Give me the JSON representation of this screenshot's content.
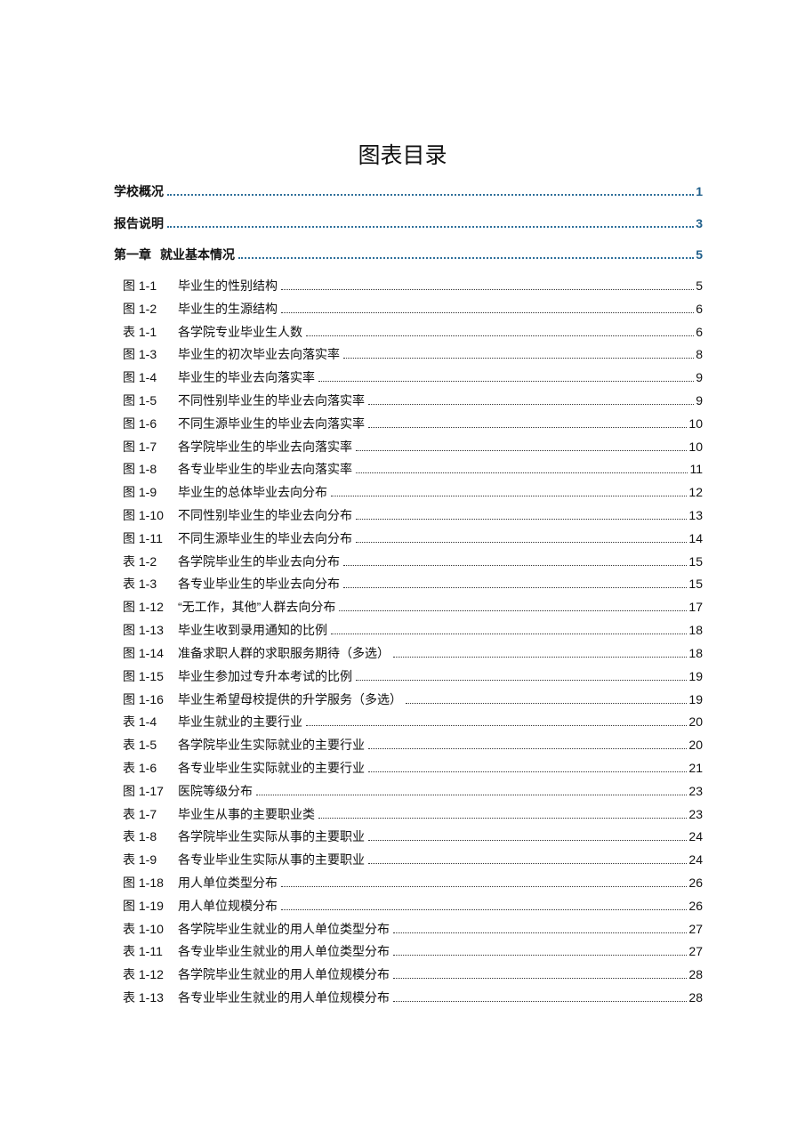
{
  "title": "图表目录",
  "main_entries": [
    {
      "prefix": "",
      "label": "学校概况",
      "page": "1"
    },
    {
      "prefix": "",
      "label": "报告说明",
      "page": "3"
    },
    {
      "prefix": "第一章",
      "label": "就业基本情况",
      "page": "5"
    }
  ],
  "entries": [
    {
      "num": "图 1-1",
      "label": "毕业生的性别结构",
      "page": "5"
    },
    {
      "num": "图 1-2",
      "label": "毕业生的生源结构",
      "page": "6"
    },
    {
      "num": "表 1-1",
      "label": "各学院专业毕业生人数",
      "page": "6"
    },
    {
      "num": "图 1-3",
      "label": "毕业生的初次毕业去向落实率",
      "page": "8"
    },
    {
      "num": "图 1-4",
      "label": "毕业生的毕业去向落实率",
      "page": "9"
    },
    {
      "num": "图 1-5",
      "label": "不同性别毕业生的毕业去向落实率",
      "page": "9"
    },
    {
      "num": "图 1-6",
      "label": "不同生源毕业生的毕业去向落实率",
      "page": "10"
    },
    {
      "num": "图 1-7",
      "label": "各学院毕业生的毕业去向落实率",
      "page": "10"
    },
    {
      "num": "图 1-8",
      "label": "各专业毕业生的毕业去向落实率",
      "page": "11"
    },
    {
      "num": "图 1-9",
      "label": "毕业生的总体毕业去向分布",
      "page": "12"
    },
    {
      "num": "图 1-10",
      "label": "不同性别毕业生的毕业去向分布",
      "page": "13"
    },
    {
      "num": "图 1-11",
      "label": "不同生源毕业生的毕业去向分布",
      "page": "14"
    },
    {
      "num": "表 1-2",
      "label": "各学院毕业生的毕业去向分布",
      "page": "15"
    },
    {
      "num": "表 1-3",
      "label": "各专业毕业生的毕业去向分布",
      "page": "15"
    },
    {
      "num": "图 1-12",
      "label": "“无工作，其他”人群去向分布",
      "page": "17"
    },
    {
      "num": "图 1-13",
      "label": "毕业生收到录用通知的比例",
      "page": "18"
    },
    {
      "num": "图 1-14",
      "label": "准备求职人群的求职服务期待（多选）",
      "page": "18"
    },
    {
      "num": "图 1-15",
      "label": "毕业生参加过专升本考试的比例",
      "page": "19"
    },
    {
      "num": "图 1-16",
      "label": "毕业生希望母校提供的升学服务（多选）",
      "page": "19"
    },
    {
      "num": "表 1-4",
      "label": "毕业生就业的主要行业",
      "page": "20"
    },
    {
      "num": "表 1-5",
      "label": "各学院毕业生实际就业的主要行业",
      "page": "20"
    },
    {
      "num": "表 1-6",
      "label": "各专业毕业生实际就业的主要行业",
      "page": "21"
    },
    {
      "num": "图 1-17",
      "label": "医院等级分布",
      "page": "23"
    },
    {
      "num": "表 1-7",
      "label": "毕业生从事的主要职业类",
      "page": "23"
    },
    {
      "num": "表 1-8",
      "label": "各学院毕业生实际从事的主要职业",
      "page": "24"
    },
    {
      "num": "表 1-9",
      "label": "各专业毕业生实际从事的主要职业",
      "page": "24"
    },
    {
      "num": "图 1-18",
      "label": "用人单位类型分布",
      "page": "26"
    },
    {
      "num": "图 1-19",
      "label": "用人单位规模分布",
      "page": "26"
    },
    {
      "num": "表 1-10",
      "label": "各学院毕业生就业的用人单位类型分布",
      "page": "27"
    },
    {
      "num": "表 1-11",
      "label": "各专业毕业生就业的用人单位类型分布",
      "page": "27"
    },
    {
      "num": "表 1-12",
      "label": "各学院毕业生就业的用人单位规模分布",
      "page": "28"
    },
    {
      "num": "表 1-13",
      "label": "各专业毕业生就业的用人单位规模分布",
      "page": "28"
    }
  ]
}
